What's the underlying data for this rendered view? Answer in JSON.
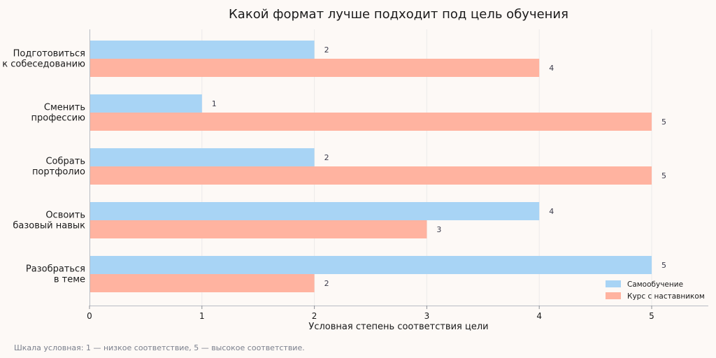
{
  "chart_data": {
    "type": "bar",
    "orientation": "horizontal",
    "title": "Какой формат лучше подходит под цель обучения",
    "xlabel": "Условная степень соответствия цели",
    "ylabel": "",
    "xlim": [
      0,
      5.5
    ],
    "xticks": [
      0,
      1,
      2,
      3,
      4,
      5
    ],
    "grid": true,
    "legend_position": "bottom-right",
    "categories": [
      "Подготовиться\nк собеседованию",
      "Сменить\nпрофессию",
      "Собрать\nпортфолио",
      "Освоить\nбазовый навык",
      "Разобраться\nв теме"
    ],
    "series": [
      {
        "name": "Самообучение",
        "color": "#a8d4f5",
        "values": [
          2,
          1,
          2,
          4,
          5
        ]
      },
      {
        "name": "Курс с наставником",
        "color": "#ffb3a0",
        "values": [
          4,
          5,
          5,
          3,
          2
        ]
      }
    ],
    "footnote": "Шкала условная: 1 — низкое соответствие, 5 — высокое соответствие."
  }
}
